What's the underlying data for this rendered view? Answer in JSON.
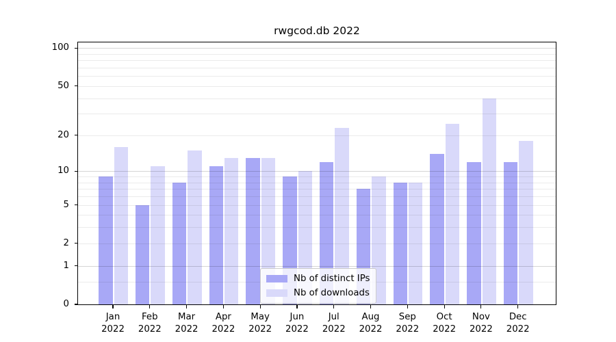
{
  "title": "rwgcod.db 2022",
  "chart_data": {
    "type": "bar",
    "title": "rwgcod.db 2022",
    "months": [
      "Jan",
      "Feb",
      "Mar",
      "Apr",
      "May",
      "Jun",
      "Jul",
      "Aug",
      "Sep",
      "Oct",
      "Nov",
      "Dec"
    ],
    "year": "2022",
    "categories": [
      "Jan 2022",
      "Feb 2022",
      "Mar 2022",
      "Apr 2022",
      "May 2022",
      "Jun 2022",
      "Jul 2022",
      "Aug 2022",
      "Sep 2022",
      "Oct 2022",
      "Nov 2022",
      "Dec 2022"
    ],
    "series": [
      {
        "name": "Nb of distinct IPs",
        "color": "#a8a8f6",
        "values": [
          9,
          5,
          8,
          11,
          13,
          9,
          12,
          7,
          8,
          14,
          12,
          12
        ]
      },
      {
        "name": "Nb of downloads",
        "color": "#d9d9fa",
        "values": [
          16,
          11,
          15,
          13,
          13,
          10,
          23,
          9,
          8,
          25,
          40,
          18
        ]
      }
    ],
    "yscale": "symlog (position proportional to ln(1+value))",
    "ylim": [
      0,
      111
    ],
    "ytick_values": [
      100,
      50,
      20,
      10,
      5,
      2,
      1,
      0
    ],
    "major_grid_values": [
      1,
      10,
      100
    ],
    "minor_grid_values": [
      0.5,
      2,
      3,
      4,
      5,
      6,
      7,
      8,
      9,
      20,
      30,
      40,
      50,
      60,
      70,
      80,
      90
    ],
    "grid": true,
    "grid_minor_color": "#ebebeb",
    "grid_major_color": "#d5d5d5",
    "legend_position": "lower center",
    "xlabel": "",
    "ylabel": ""
  }
}
